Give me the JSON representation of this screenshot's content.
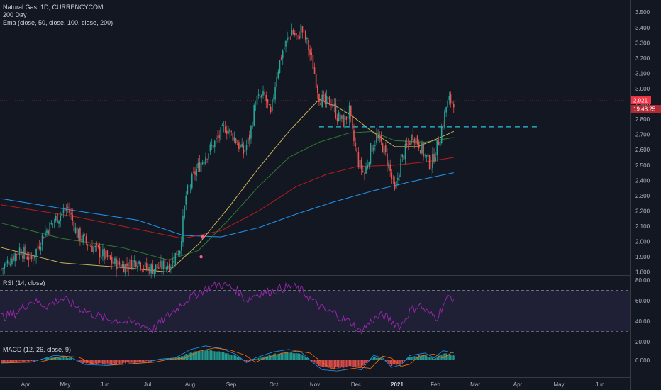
{
  "legend": {
    "symbol": "Natural Gas, 1D, CURRENCYCOM",
    "indicator1": "200 Day",
    "indicator2": "Ema (close, 50, close, 100, close, 200)",
    "rsi": "RSI (14, close)",
    "macd": "MACD (12, 26, close, 9)"
  },
  "price_badge": {
    "price": "2.921",
    "time": "19:48:25"
  },
  "colors": {
    "background": "#131722",
    "up": "#26a69a",
    "down": "#ef5350",
    "ema_short": "#c9b458",
    "ema_50": "#2e7d32",
    "ema_100": "#b71c1c",
    "ema_200": "#2196f3",
    "rsi": "#9c27b0",
    "level_line": "#26c6da",
    "current_price": "#f23645"
  },
  "chart_data": [
    {
      "type": "candlestick",
      "title": "Natural Gas, 1D, CURRENCYCOM",
      "y_ticks": [
        "3.500",
        "3.400",
        "3.300",
        "3.200",
        "3.100",
        "3.000",
        "2.900",
        "2.800",
        "2.700",
        "2.600",
        "2.500",
        "2.400",
        "2.300",
        "2.200",
        "2.100",
        "2.000",
        "1.900",
        "1.800"
      ],
      "ylim": [
        1.78,
        3.58
      ],
      "x_ticks": [
        "Apr",
        "May",
        "Jun",
        "Jul",
        "Aug",
        "Sep",
        "Oct",
        "Nov",
        "Dec",
        "2021",
        "Feb",
        "Mar",
        "Apr",
        "May",
        "Jun"
      ],
      "current_price": 2.921,
      "horizontal_level": 2.75,
      "series_anchors": {
        "close": [
          [
            0,
            1.82
          ],
          [
            12,
            1.95
          ],
          [
            20,
            1.88
          ],
          [
            28,
            2.05
          ],
          [
            36,
            2.15
          ],
          [
            44,
            2.22
          ],
          [
            50,
            2.05
          ],
          [
            58,
            1.98
          ],
          [
            66,
            1.92
          ],
          [
            74,
            1.86
          ],
          [
            82,
            1.84
          ],
          [
            90,
            1.88
          ],
          [
            96,
            1.82
          ],
          [
            104,
            1.83
          ],
          [
            112,
            1.86
          ],
          [
            118,
            1.96
          ],
          [
            122,
            2.3
          ],
          [
            128,
            2.45
          ],
          [
            134,
            2.55
          ],
          [
            142,
            2.66
          ],
          [
            148,
            2.75
          ],
          [
            154,
            2.68
          ],
          [
            160,
            2.58
          ],
          [
            164,
            2.68
          ],
          [
            168,
            2.92
          ],
          [
            174,
            2.95
          ],
          [
            178,
            2.82
          ],
          [
            182,
            3.1
          ],
          [
            186,
            3.25
          ],
          [
            192,
            3.38
          ],
          [
            196,
            3.32
          ],
          [
            198,
            3.4
          ],
          [
            202,
            3.3
          ],
          [
            206,
            3.15
          ],
          [
            210,
            2.95
          ],
          [
            214,
            2.9
          ],
          [
            218,
            2.92
          ],
          [
            222,
            2.82
          ],
          [
            226,
            2.78
          ],
          [
            230,
            2.85
          ],
          [
            232,
            2.7
          ],
          [
            236,
            2.52
          ],
          [
            240,
            2.44
          ],
          [
            244,
            2.6
          ],
          [
            248,
            2.68
          ],
          [
            252,
            2.62
          ],
          [
            256,
            2.5
          ],
          [
            260,
            2.32
          ],
          [
            264,
            2.52
          ],
          [
            268,
            2.62
          ],
          [
            272,
            2.7
          ],
          [
            276,
            2.64
          ],
          [
            280,
            2.56
          ],
          [
            284,
            2.5
          ],
          [
            288,
            2.62
          ],
          [
            292,
            2.78
          ],
          [
            294,
            2.88
          ],
          [
            296,
            2.92
          ],
          [
            299,
            2.921
          ]
        ],
        "ema_short": [
          [
            0,
            1.96
          ],
          [
            40,
            1.86
          ],
          [
            80,
            1.83
          ],
          [
            110,
            1.8
          ],
          [
            130,
            1.98
          ],
          [
            150,
            2.22
          ],
          [
            170,
            2.48
          ],
          [
            190,
            2.72
          ],
          [
            210,
            2.93
          ],
          [
            222,
            2.88
          ],
          [
            232,
            2.82
          ],
          [
            245,
            2.72
          ],
          [
            260,
            2.62
          ],
          [
            275,
            2.62
          ],
          [
            290,
            2.68
          ],
          [
            299,
            2.72
          ]
        ],
        "ema_50": [
          [
            0,
            2.12
          ],
          [
            40,
            2.02
          ],
          [
            80,
            1.96
          ],
          [
            110,
            1.88
          ],
          [
            130,
            1.94
          ],
          [
            150,
            2.14
          ],
          [
            170,
            2.36
          ],
          [
            190,
            2.55
          ],
          [
            210,
            2.65
          ],
          [
            230,
            2.71
          ],
          [
            245,
            2.72
          ],
          [
            260,
            2.66
          ],
          [
            280,
            2.65
          ],
          [
            299,
            2.68
          ]
        ],
        "ema_100": [
          [
            0,
            2.24
          ],
          [
            50,
            2.16
          ],
          [
            90,
            2.08
          ],
          [
            120,
            2.02
          ],
          [
            145,
            2.07
          ],
          [
            170,
            2.2
          ],
          [
            195,
            2.36
          ],
          [
            215,
            2.44
          ],
          [
            235,
            2.49
          ],
          [
            260,
            2.5
          ],
          [
            280,
            2.52
          ],
          [
            299,
            2.55
          ]
        ],
        "ema_200": [
          [
            0,
            2.28
          ],
          [
            50,
            2.2
          ],
          [
            90,
            2.14
          ],
          [
            120,
            2.04
          ],
          [
            145,
            2.03
          ],
          [
            170,
            2.09
          ],
          [
            195,
            2.18
          ],
          [
            220,
            2.26
          ],
          [
            245,
            2.33
          ],
          [
            270,
            2.39
          ],
          [
            299,
            2.45
          ]
        ]
      }
    },
    {
      "type": "line",
      "title": "RSI (14, close)",
      "y_ticks": [
        "80.00",
        "60.00",
        "40.00",
        "20.00"
      ],
      "ylim": [
        20,
        82
      ],
      "band": [
        30,
        70
      ],
      "series_anchors": [
        [
          0,
          44
        ],
        [
          10,
          48
        ],
        [
          20,
          60
        ],
        [
          30,
          55
        ],
        [
          40,
          62
        ],
        [
          50,
          54
        ],
        [
          60,
          47
        ],
        [
          70,
          42
        ],
        [
          80,
          40
        ],
        [
          90,
          38
        ],
        [
          100,
          32
        ],
        [
          110,
          45
        ],
        [
          120,
          58
        ],
        [
          128,
          66
        ],
        [
          136,
          72
        ],
        [
          144,
          76
        ],
        [
          150,
          74
        ],
        [
          156,
          70
        ],
        [
          162,
          60
        ],
        [
          168,
          66
        ],
        [
          174,
          68
        ],
        [
          180,
          70
        ],
        [
          186,
          72
        ],
        [
          192,
          74
        ],
        [
          198,
          70
        ],
        [
          204,
          62
        ],
        [
          210,
          55
        ],
        [
          214,
          50
        ],
        [
          220,
          48
        ],
        [
          226,
          42
        ],
        [
          232,
          38
        ],
        [
          236,
          30
        ],
        [
          240,
          34
        ],
        [
          246,
          42
        ],
        [
          252,
          46
        ],
        [
          258,
          40
        ],
        [
          264,
          35
        ],
        [
          270,
          50
        ],
        [
          276,
          56
        ],
        [
          282,
          48
        ],
        [
          288,
          44
        ],
        [
          292,
          56
        ],
        [
          296,
          64
        ],
        [
          299,
          62
        ]
      ]
    },
    {
      "type": "bar",
      "title": "MACD (12, 26, close, 9)",
      "y_ticks": [
        "0.000"
      ],
      "ylim": [
        -0.1,
        0.1
      ],
      "histogram_anchors": [
        [
          0,
          -0.012
        ],
        [
          20,
          -0.008
        ],
        [
          35,
          0.02
        ],
        [
          45,
          0.015
        ],
        [
          55,
          -0.018
        ],
        [
          70,
          -0.022
        ],
        [
          85,
          -0.015
        ],
        [
          95,
          -0.01
        ],
        [
          105,
          0.005
        ],
        [
          115,
          0.01
        ],
        [
          125,
          0.045
        ],
        [
          135,
          0.06
        ],
        [
          145,
          0.05
        ],
        [
          155,
          0.025
        ],
        [
          162,
          -0.01
        ],
        [
          168,
          0.01
        ],
        [
          180,
          0.035
        ],
        [
          190,
          0.045
        ],
        [
          198,
          0.035
        ],
        [
          205,
          -0.005
        ],
        [
          212,
          -0.04
        ],
        [
          222,
          -0.045
        ],
        [
          232,
          -0.035
        ],
        [
          238,
          -0.04
        ],
        [
          246,
          0.02
        ],
        [
          252,
          0.01
        ],
        [
          258,
          -0.03
        ],
        [
          264,
          -0.02
        ],
        [
          270,
          0.02
        ],
        [
          280,
          0.03
        ],
        [
          286,
          0.01
        ],
        [
          292,
          0.04
        ],
        [
          299,
          0.03
        ]
      ]
    }
  ]
}
